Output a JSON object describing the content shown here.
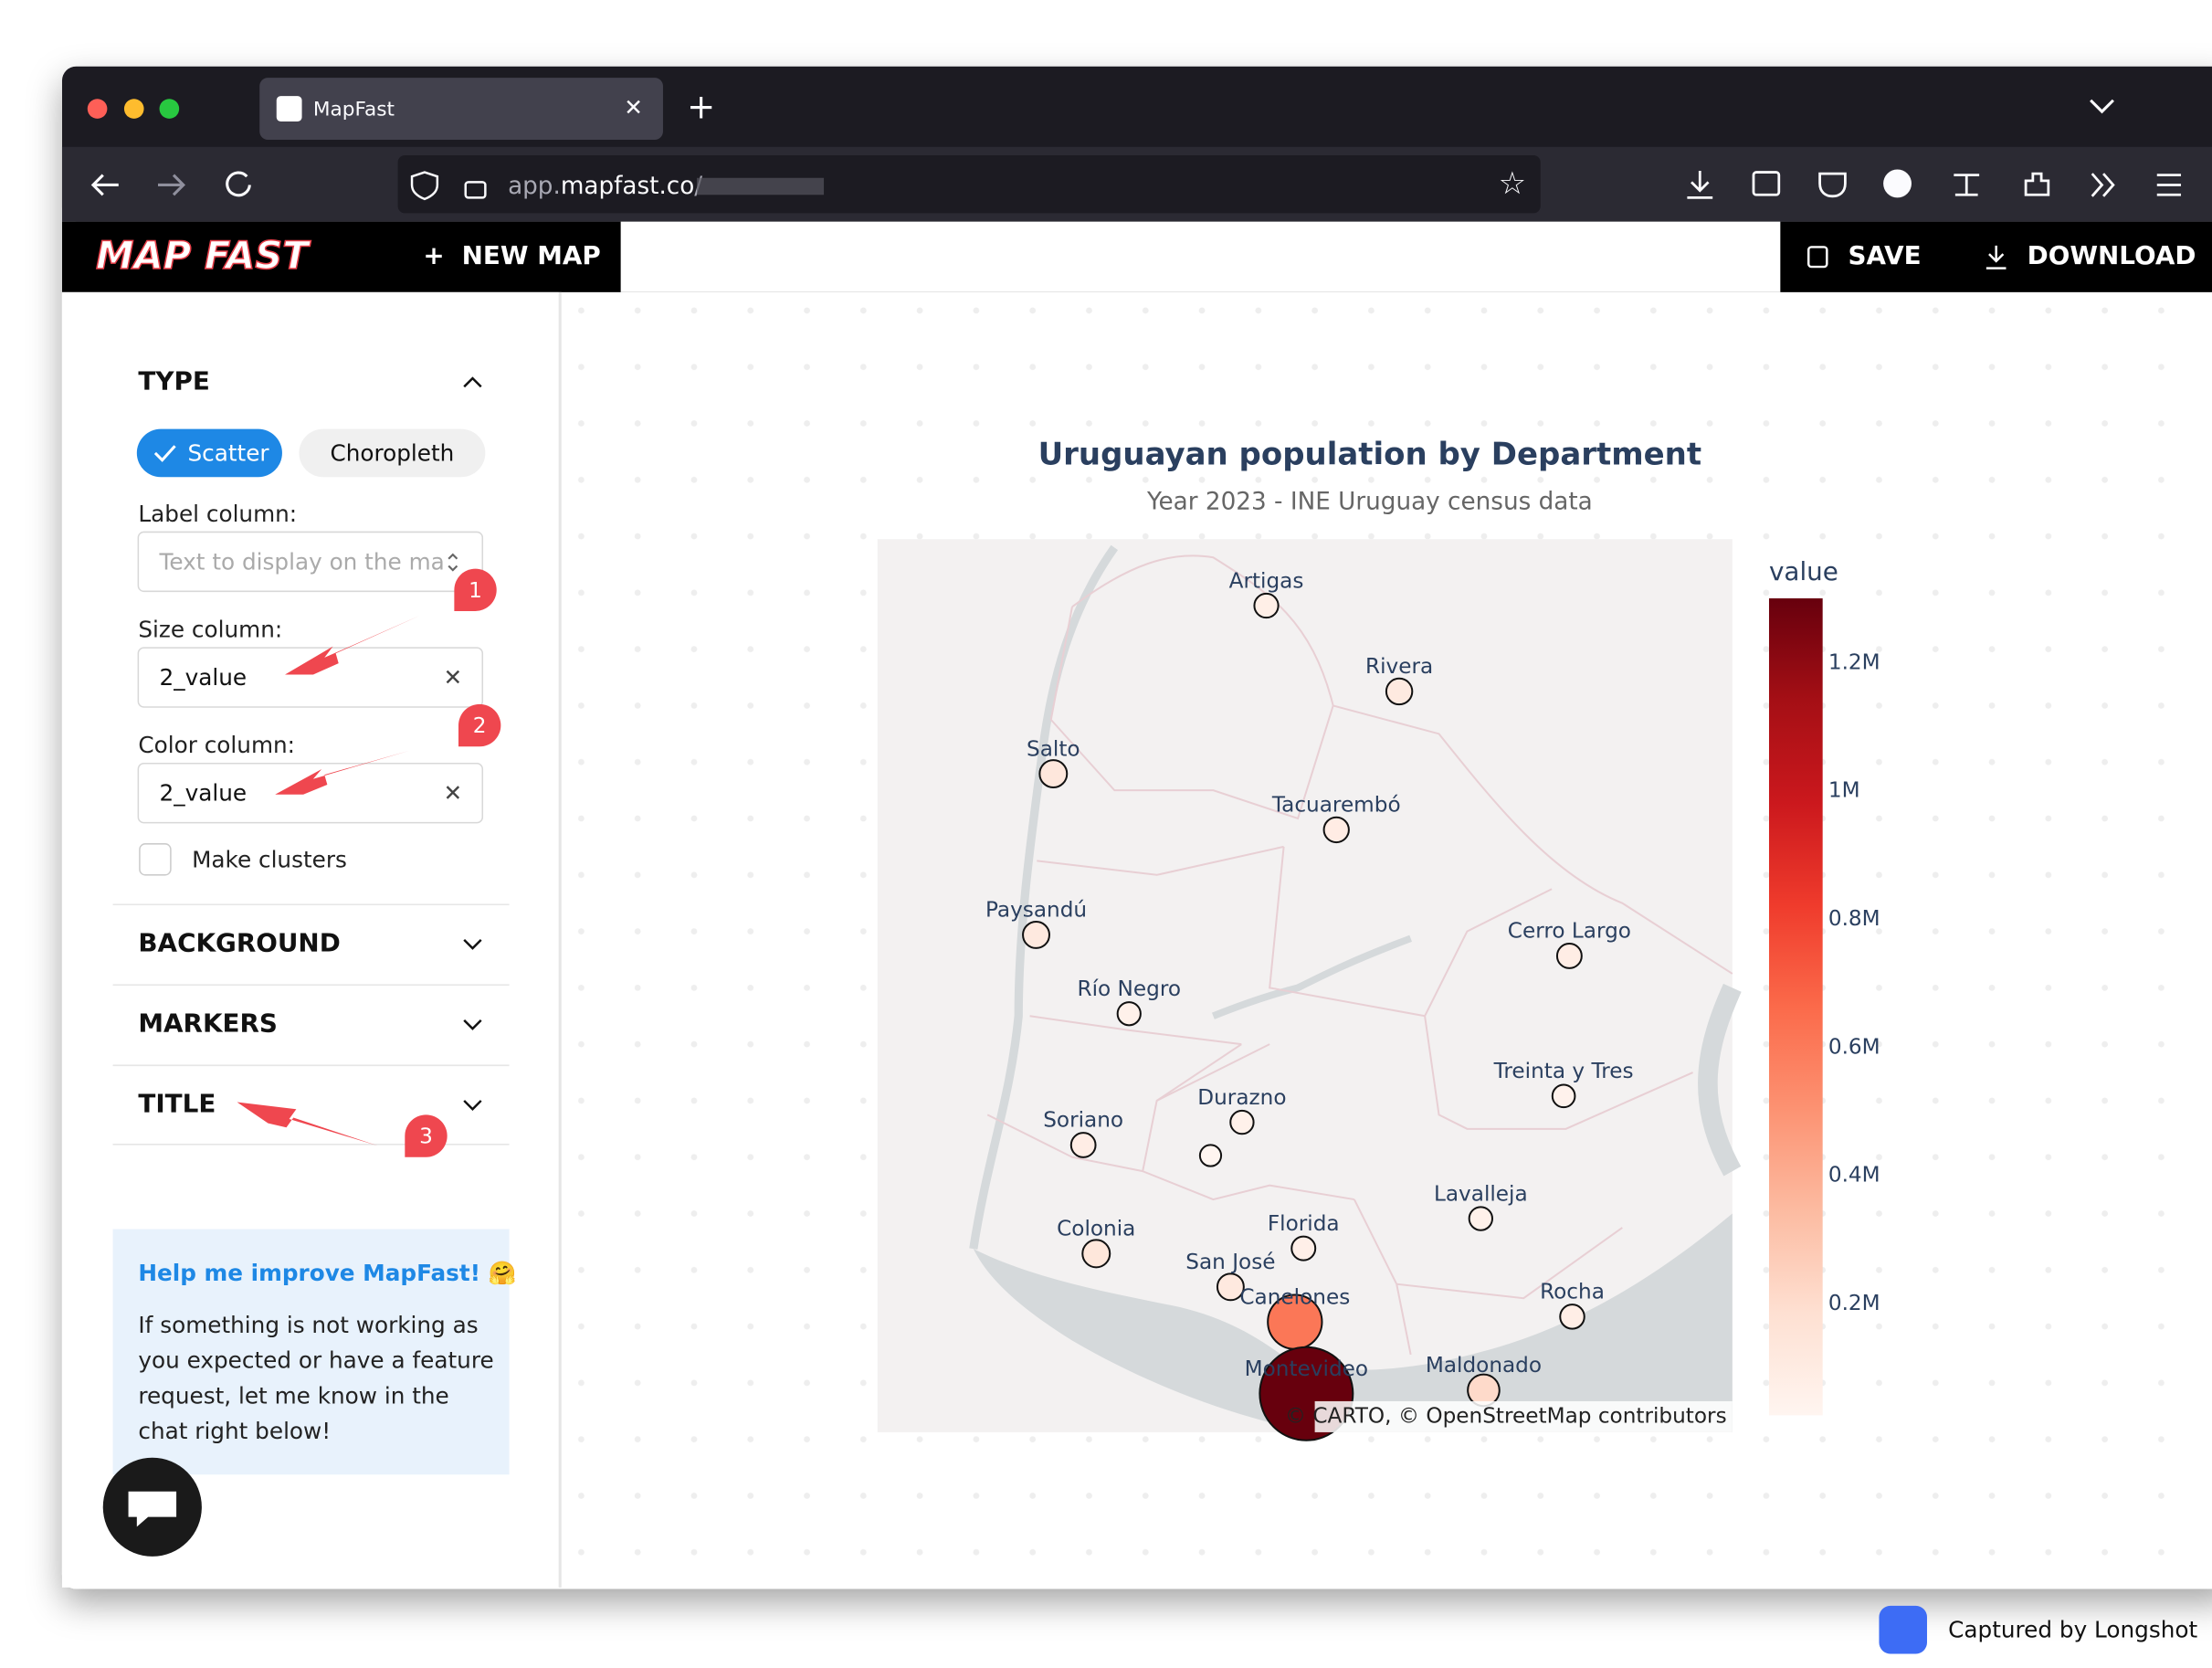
{
  "browser": {
    "tab_title": "MapFast",
    "url": [
      "app.",
      "mapfast.co",
      "/"
    ]
  },
  "app": {
    "logo": "MAP FAST",
    "new_map": "NEW MAP",
    "save": "SAVE",
    "download": "DOWNLOAD"
  },
  "sidebar": {
    "type": {
      "heading": "TYPE",
      "options": [
        "Scatter",
        "Choropleth"
      ],
      "selected": 0
    },
    "label_column": {
      "label": "Label column:",
      "placeholder": "Text to display on the ma"
    },
    "size_column": {
      "label": "Size column:",
      "value": "2_value"
    },
    "color_column": {
      "label": "Color column:",
      "value": "2_value"
    },
    "clusters": "Make clusters",
    "sections": [
      "BACKGROUND",
      "MARKERS",
      "TITLE"
    ],
    "help": {
      "title": "Help me improve MapFast! 🤗",
      "body": [
        "If something is not working as",
        "you expected or have a feature",
        "request, let me know in the",
        "chat right below!"
      ]
    }
  },
  "annotations": [
    "1",
    "2",
    "3"
  ],
  "chart_data": {
    "type": "scatter-map",
    "title": "Uruguayan population by Department",
    "subtitle": "Year 2023 - INE Uruguay census data",
    "legend_title": "value",
    "categories": [
      "Artigas",
      "Rivera",
      "Salto",
      "Tacuarembó",
      "Paysandú",
      "Cerro Largo",
      "Río Negro",
      "Treinta y Tres",
      "Durazno",
      "Soriano",
      null,
      "Lavalleja",
      "Colonia",
      "Florida",
      "San José",
      "Canelones",
      "Rocha",
      "Maldonado",
      "Montevideo"
    ],
    "lon": [
      -56.47,
      -55.54,
      -57.96,
      -55.98,
      -58.08,
      -54.35,
      -57.43,
      -54.39,
      -56.64,
      -57.75,
      -56.86,
      -54.97,
      -57.66,
      -56.21,
      -56.72,
      -56.27,
      -54.33,
      -54.95,
      -56.19
    ],
    "lat": [
      -30.4,
      -30.89,
      -31.36,
      -31.68,
      -32.28,
      -32.4,
      -32.73,
      -33.2,
      -33.35,
      -33.48,
      -33.54,
      -33.9,
      -34.1,
      -34.07,
      -34.29,
      -34.49,
      -34.46,
      -34.88,
      -34.9
    ],
    "values": [
      74000,
      110000,
      134000,
      92000,
      118000,
      85000,
      58000,
      49000,
      60000,
      83000,
      26000,
      60000,
      135000,
      70000,
      118000,
      610000,
      79000,
      210000,
      1301000
    ],
    "lonlim": [
      -59.19,
      -53.21
    ],
    "latlim": [
      -35.12,
      -30.02
    ],
    "clim": [
      26000,
      1301000
    ],
    "cticks": [
      {
        "value": 200000,
        "label": "0.2M"
      },
      {
        "value": 400000,
        "label": "0.4M"
      },
      {
        "value": 600000,
        "label": "0.6M"
      },
      {
        "value": 800000,
        "label": "0.8M"
      },
      {
        "value": 1000000,
        "label": "1M"
      },
      {
        "value": 1200000,
        "label": "1.2M"
      }
    ],
    "colorscale": [
      "#fff5f0",
      "#fee0d2",
      "#fcbba1",
      "#fc9272",
      "#fb6a4a",
      "#ef3b2c",
      "#cb181d",
      "#a50f15",
      "#67000d"
    ],
    "attribution": "© CARTO, © OpenStreetMap contributors"
  },
  "footer": "Captured by Longshot"
}
